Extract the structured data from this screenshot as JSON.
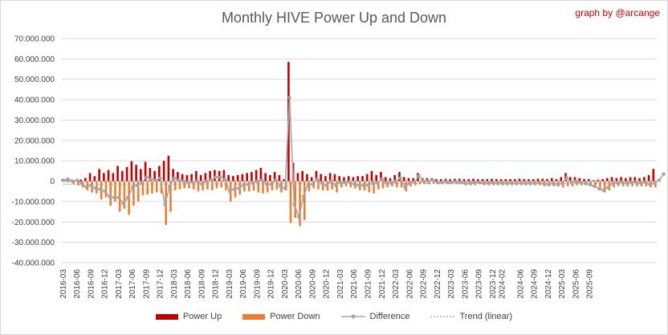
{
  "chart_data": {
    "type": "bar",
    "title": "Monthly HIVE Power Up and Down",
    "credit": "graph by @arcange",
    "ylim": [
      -40000000,
      70000000
    ],
    "yticks": [
      "70.000.000",
      "60.000.000",
      "50.000.000",
      "40.000.000",
      "30.000.000",
      "20.000.000",
      "10.000.000",
      "0",
      "-10.000.000",
      "-20.000.000",
      "-30.000.000",
      "-40.000.000"
    ],
    "ytick_values": [
      70000000,
      60000000,
      50000000,
      40000000,
      30000000,
      20000000,
      10000000,
      0,
      -10000000,
      -20000000,
      -30000000,
      -40000000
    ],
    "xtick_labels": [
      "2016-03",
      "2016-06",
      "2016-09",
      "2016-12",
      "2017-03",
      "2017-06",
      "2017-09",
      "2017-12",
      "2018-03",
      "2018-06",
      "2018-09",
      "2018-12",
      "2019-03",
      "2019-06",
      "2019-09",
      "2019-12",
      "2020-03",
      "2020-06",
      "2020-09",
      "2020-12",
      "2021-03",
      "2021-06",
      "2021-09",
      "2021-12",
      "2022-03",
      "2022-06",
      "2022-09",
      "2022-12",
      "2023-03",
      "2023-06",
      "2023-09",
      "2023-12",
      "2024-02",
      "2024-06",
      "2024-09",
      "2024-12",
      "2025-03",
      "2025-06",
      "2025-09"
    ],
    "start_month": "2016-03",
    "series": [
      {
        "name": "Power Up",
        "color": "#c00000",
        "values": [
          0.8,
          0.5,
          0.8,
          0.6,
          0.8,
          1.6,
          4.0,
          2.5,
          6.0,
          4.0,
          5.5,
          4.0,
          7.5,
          5.0,
          7.0,
          9.8,
          8.0,
          6.0,
          9.5,
          6.5,
          5.0,
          7.5,
          10.0,
          12.5,
          6.0,
          4.5,
          3.5,
          3.0,
          3.5,
          5.0,
          3.0,
          4.0,
          5.0,
          5.5,
          5.0,
          5.5,
          3.0,
          2.5,
          3.0,
          3.5,
          4.0,
          4.5,
          5.5,
          6.5,
          4.0,
          3.0,
          4.5,
          3.0,
          1.0,
          58.5,
          9.0,
          4.0,
          5.0,
          3.5,
          2.0,
          5.0,
          3.5,
          2.5,
          4.0,
          3.5,
          2.5,
          2.0,
          2.5,
          2.0,
          2.5,
          2.5,
          3.5,
          5.0,
          3.0,
          4.5,
          2.0,
          1.5,
          3.0,
          4.5,
          2.0,
          1.5,
          1.5,
          4.0,
          1.5,
          1.5,
          1.5,
          1.0,
          1.0,
          1.2,
          1.0,
          1.2,
          1.2,
          1.0,
          1.0,
          1.2,
          1.0,
          1.0,
          1.0,
          1.2,
          1.0,
          1.0,
          1.0,
          1.0,
          1.0,
          1.2,
          1.0,
          1.0,
          1.0,
          1.2,
          1.2,
          1.0,
          1.5,
          1.0,
          2.0,
          4.0,
          2.0,
          2.0,
          1.5,
          1.0,
          1.0,
          0.5,
          0.8,
          1.0,
          1.5,
          2.0,
          1.5,
          2.0,
          1.5,
          2.0,
          2.0,
          1.5,
          2.0,
          3.0,
          6.0
        ]
      },
      {
        "name": "Power Down",
        "color": "#ed7d31",
        "values": [
          -0.3,
          -0.5,
          -1.5,
          -2.0,
          -3.0,
          -4.5,
          -5.5,
          -6.0,
          -9.0,
          -8.0,
          -12.0,
          -10.0,
          -15.0,
          -13.5,
          -16.5,
          -12.0,
          -10.0,
          -7.0,
          -6.5,
          -6.0,
          -5.5,
          -6.0,
          -21.5,
          -15.0,
          -4.5,
          -4.0,
          -3.5,
          -3.5,
          -4.0,
          -5.0,
          -4.5,
          -4.0,
          -4.5,
          -3.5,
          -3.0,
          -4.5,
          -10.0,
          -8.0,
          -6.5,
          -5.0,
          -5.0,
          -4.5,
          -5.5,
          -6.0,
          -5.5,
          -4.5,
          -4.0,
          -5.5,
          -4.5,
          -20.5,
          -18.0,
          -22.0,
          -19.0,
          -5.0,
          -3.5,
          -4.0,
          -4.5,
          -4.5,
          -4.0,
          -5.5,
          -3.0,
          -2.5,
          -3.0,
          -3.5,
          -4.5,
          -4.5,
          -5.5,
          -6.0,
          -4.0,
          -3.5,
          -3.0,
          -2.5,
          -3.0,
          -3.0,
          -5.0,
          -2.5,
          -2.0,
          -1.5,
          -1.5,
          -1.5,
          -1.0,
          -1.5,
          -1.5,
          -1.5,
          -1.5,
          -1.5,
          -1.5,
          -2.0,
          -2.0,
          -2.0,
          -1.5,
          -2.0,
          -2.0,
          -2.0,
          -2.0,
          -2.0,
          -2.0,
          -2.0,
          -2.0,
          -2.0,
          -2.0,
          -2.0,
          -2.0,
          -2.0,
          -2.5,
          -2.5,
          -2.5,
          -2.5,
          -3.0,
          -2.5,
          -2.5,
          -2.0,
          -2.0,
          -2.0,
          -2.5,
          -3.0,
          -4.5,
          -5.5,
          -4.5,
          -3.0,
          -2.5,
          -2.5,
          -2.5,
          -2.5,
          -2.5,
          -2.5,
          -2.5,
          -3.0,
          -3.0,
          -2.5,
          -2.0
        ]
      },
      {
        "name": "Difference",
        "color": "#a5a5a5",
        "values": [
          0.5,
          1.0,
          0.0,
          0.5,
          -1.0,
          -3.0,
          -2.0,
          -3.5,
          -4.0,
          -5.0,
          -7.5,
          -8.0,
          -8.0,
          -11.0,
          -8.0,
          -3.0,
          -2.0,
          -1.0,
          2.0,
          1.0,
          0.5,
          1.5,
          -11.5,
          -2.5,
          1.5,
          0.5,
          0.0,
          -0.5,
          -0.5,
          0.0,
          -1.5,
          0.0,
          0.5,
          2.0,
          2.0,
          1.0,
          -5.0,
          -4.0,
          -3.5,
          -2.0,
          -1.5,
          -1.0,
          0.0,
          0.5,
          -1.5,
          -1.5,
          0.5,
          -2.5,
          -3.5,
          41.0,
          -11.5,
          -17.5,
          -7.5,
          -1.5,
          -1.5,
          1.0,
          -1.0,
          -2.0,
          0.0,
          -2.0,
          -0.5,
          -0.5,
          -0.5,
          -1.5,
          -2.0,
          -2.0,
          -2.0,
          -1.0,
          -1.0,
          1.0,
          -1.0,
          -1.0,
          0.0,
          1.5,
          -3.0,
          -1.0,
          -0.5,
          2.5,
          0.0,
          0.0,
          0.5,
          -0.5,
          -0.5,
          -0.3,
          -0.5,
          -0.3,
          -0.3,
          -1.0,
          -1.0,
          -0.8,
          -0.5,
          -1.0,
          -1.0,
          -0.8,
          -1.0,
          -1.0,
          -1.0,
          -1.0,
          -1.0,
          -0.8,
          -1.0,
          -1.0,
          -1.0,
          -0.8,
          -1.3,
          -1.5,
          -1.0,
          -1.5,
          -1.0,
          1.5,
          -0.5,
          0.0,
          -0.5,
          -1.0,
          -1.5,
          -2.5,
          -3.7,
          -4.5,
          -3.0,
          -1.0,
          -1.0,
          -0.5,
          -1.0,
          -0.5,
          -0.5,
          -1.0,
          -0.5,
          -1.5,
          -1.0,
          0.5,
          3.5
        ]
      },
      {
        "name": "Trend (linear)",
        "color": "#a5a5a5",
        "style": "dotted",
        "values": [
          -1.5,
          -1.0
        ]
      }
    ]
  },
  "legend": {
    "power_up": "Power Up",
    "power_down": "Power Down",
    "difference": "Difference",
    "trend": "Trend (linear)"
  }
}
